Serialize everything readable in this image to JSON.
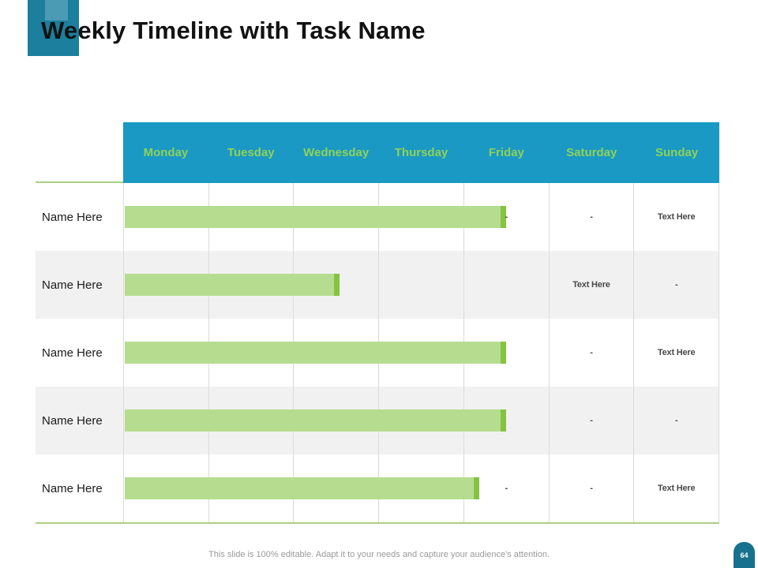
{
  "slide": {
    "title": "Weekly Timeline with Task Name",
    "footer_note": "This slide is 100% editable. Adapt it to your needs and capture your audience's attention.",
    "page_number": "64"
  },
  "chart_data": {
    "type": "gantt",
    "title": "Weekly Timeline with Task Name",
    "columns": [
      "Monday",
      "Tuesday",
      "Wednesday",
      "Thursday",
      "Friday",
      "Saturday",
      "Sunday"
    ],
    "bar_unit": "day-columns from start of Monday",
    "tasks": [
      {
        "name": "Name Here",
        "bar_days": 4.5,
        "cell_labels": [
          "",
          "",
          "",
          "",
          "-",
          "-",
          "Text Here"
        ]
      },
      {
        "name": "Name Here",
        "bar_days": 2.54,
        "cell_labels": [
          "",
          "",
          "",
          "",
          "",
          "Text Here",
          "-"
        ]
      },
      {
        "name": "Name Here",
        "bar_days": 4.5,
        "cell_labels": [
          "",
          "",
          "",
          "",
          "",
          "-",
          "Text Here"
        ]
      },
      {
        "name": "Name Here",
        "bar_days": 4.5,
        "cell_labels": [
          "",
          "",
          "",
          "",
          "",
          "-",
          "-"
        ]
      },
      {
        "name": "Name Here",
        "bar_days": 4.18,
        "cell_labels": [
          "",
          "",
          "",
          "",
          "-",
          "-",
          "Text Here"
        ]
      }
    ]
  },
  "colors": {
    "header_bg": "#1999C3",
    "day_label": "#90D159",
    "bar_fill": "#B6DD8F",
    "bar_cap": "#85C341",
    "alt_row_bg": "#F1F1F1",
    "grid_line": "#DBDBDB",
    "accent_line": "#ABCF85",
    "title_block": "#1B7F9D",
    "title_block_light": "#4C9BB4",
    "badge_bg": "#17708D",
    "title_text": "#121212",
    "cell_text": "#4A4A4A",
    "footer_text": "#9A9A9A"
  }
}
